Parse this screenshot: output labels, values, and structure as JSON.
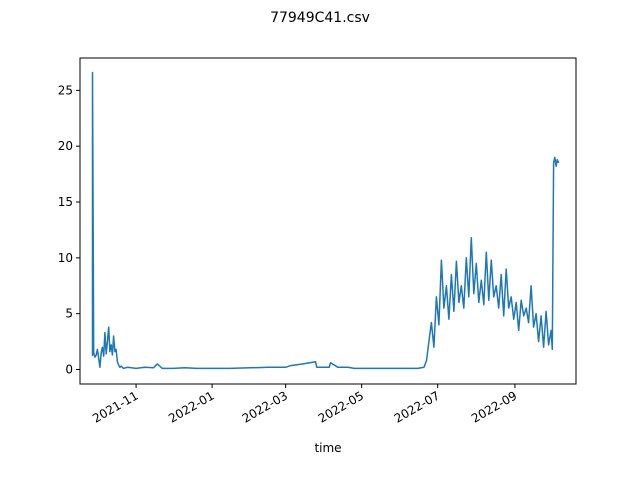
{
  "chart_data": {
    "type": "line",
    "title": "77949C41.csv",
    "xlabel": "time",
    "ylabel": "",
    "xlim": [
      "2021-09-17",
      "2022-10-20"
    ],
    "ylim": [
      -1.3,
      27.9
    ],
    "x_ticks": [
      "2021-11",
      "2022-01",
      "2022-03",
      "2022-05",
      "2022-07",
      "2022-09"
    ],
    "y_ticks": [
      0,
      5,
      10,
      15,
      20,
      25
    ],
    "grid": false,
    "line_color": "#1f77b4",
    "series": [
      {
        "x": [
          "2021-09-27",
          "2021-09-27",
          "2021-09-28",
          "2021-09-29",
          "2021-09-30",
          "2021-10-01",
          "2021-10-02",
          "2021-10-03",
          "2021-10-04",
          "2021-10-05",
          "2021-10-06",
          "2021-10-07",
          "2021-10-08",
          "2021-10-09",
          "2021-10-10",
          "2021-10-11",
          "2021-10-12",
          "2021-10-13",
          "2021-10-14",
          "2021-10-15",
          "2021-10-16",
          "2021-10-17",
          "2021-10-18",
          "2021-10-19",
          "2021-10-20",
          "2021-10-22",
          "2021-10-25",
          "2021-11-01",
          "2021-11-08",
          "2021-11-15",
          "2021-11-18",
          "2021-11-22",
          "2021-12-01",
          "2021-12-10",
          "2021-12-20",
          "2022-01-01",
          "2022-01-15",
          "2022-02-01",
          "2022-02-15",
          "2022-03-01",
          "2022-03-05",
          "2022-03-15",
          "2022-03-25",
          "2022-03-26",
          "2022-04-05",
          "2022-04-06",
          "2022-04-12",
          "2022-04-20",
          "2022-04-25",
          "2022-05-05",
          "2022-05-20",
          "2022-06-01",
          "2022-06-15",
          "2022-06-20",
          "2022-06-22",
          "2022-06-24",
          "2022-06-26",
          "2022-06-28",
          "2022-06-30",
          "2022-07-02",
          "2022-07-04",
          "2022-07-06",
          "2022-07-08",
          "2022-07-10",
          "2022-07-12",
          "2022-07-14",
          "2022-07-16",
          "2022-07-18",
          "2022-07-20",
          "2022-07-22",
          "2022-07-24",
          "2022-07-26",
          "2022-07-28",
          "2022-07-30",
          "2022-08-01",
          "2022-08-03",
          "2022-08-05",
          "2022-08-07",
          "2022-08-09",
          "2022-08-11",
          "2022-08-13",
          "2022-08-15",
          "2022-08-17",
          "2022-08-19",
          "2022-08-21",
          "2022-08-23",
          "2022-08-25",
          "2022-08-27",
          "2022-08-29",
          "2022-08-31",
          "2022-09-02",
          "2022-09-04",
          "2022-09-06",
          "2022-09-08",
          "2022-09-10",
          "2022-09-12",
          "2022-09-14",
          "2022-09-16",
          "2022-09-18",
          "2022-09-20",
          "2022-09-22",
          "2022-09-24",
          "2022-09-26",
          "2022-09-28",
          "2022-09-30",
          "2022-10-01",
          "2022-10-02",
          "2022-10-03",
          "2022-10-04",
          "2022-10-05",
          "2022-10-06"
        ],
        "values": [
          1.2,
          26.6,
          1.5,
          1.1,
          1.3,
          1.8,
          1.0,
          0.2,
          1.5,
          2.0,
          1.2,
          3.3,
          1.4,
          2.5,
          3.8,
          1.6,
          2.2,
          1.3,
          3.0,
          1.6,
          1.8,
          0.7,
          0.4,
          0.2,
          0.3,
          0.1,
          0.2,
          0.1,
          0.2,
          0.15,
          0.5,
          0.1,
          0.1,
          0.15,
          0.1,
          0.1,
          0.1,
          0.15,
          0.2,
          0.2,
          0.35,
          0.5,
          0.7,
          0.2,
          0.2,
          0.6,
          0.2,
          0.2,
          0.1,
          0.1,
          0.1,
          0.1,
          0.1,
          0.2,
          0.8,
          2.5,
          4.2,
          2.0,
          6.5,
          4.0,
          9.8,
          5.5,
          7.5,
          4.5,
          8.5,
          5.2,
          9.7,
          6.0,
          7.5,
          5.5,
          10.0,
          6.5,
          11.8,
          6.8,
          9.5,
          6.0,
          8.0,
          5.8,
          10.5,
          6.2,
          9.8,
          6.5,
          7.5,
          5.5,
          8.5,
          4.8,
          9.0,
          5.5,
          6.5,
          4.5,
          6.0,
          3.5,
          6.2,
          4.8,
          5.5,
          4.2,
          7.5,
          3.8,
          5.0,
          2.5,
          4.8,
          2.0,
          5.2,
          2.2,
          3.5,
          1.8,
          18.5,
          19.0,
          18.2,
          18.8,
          18.5
        ]
      }
    ]
  }
}
